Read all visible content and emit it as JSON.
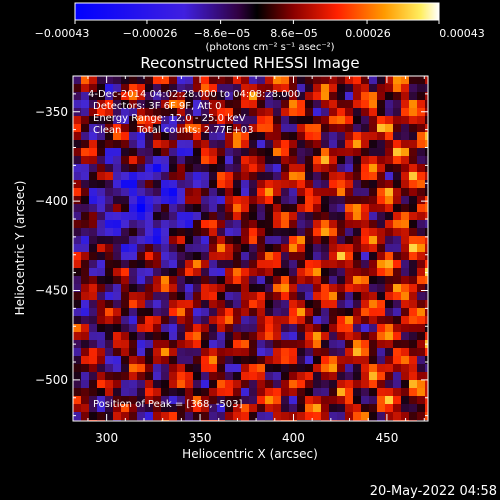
{
  "chart_data": {
    "type": "heatmap",
    "title": "Reconstructed RHESSI Image",
    "xlabel": "Heliocentric X (arcsec)",
    "ylabel": "Heliocentric Y (arcsec)",
    "xlim": [
      282,
      472
    ],
    "ylim": [
      -523,
      -330
    ],
    "x_ticks": [
      300,
      350,
      400,
      450
    ],
    "y_ticks": [
      -500,
      -450,
      -400,
      -350
    ],
    "x_tick_labels": [
      "300",
      "350",
      "400",
      "450"
    ],
    "y_tick_labels": [
      "−500",
      "−450",
      "−400",
      "−350"
    ],
    "colorbar": {
      "range": [
        -0.00043,
        0.00043
      ],
      "ticks": [
        -0.00043,
        -0.00026,
        -8.6e-05,
        8.6e-05,
        0.00026,
        0.00043
      ],
      "tick_labels": [
        "−0.00043",
        "−0.00026",
        "−8.6e−05",
        "8.6e−05",
        "0.00026",
        "0.00043"
      ],
      "unit_label": "(photons cm⁻² s⁻¹ asec⁻²)"
    },
    "annotations": [
      "4-Dec-2014 04:02:28.000 to 04:08:28.000",
      "Detectors: 3F 6F 9F, Att 0",
      "Energy Range: 12.0 - 25.0 keV",
      "Clean     Total counts: 2.77E+03",
      "Position of Peak = [368, -503]"
    ],
    "peak": [
      368,
      -503
    ],
    "grid": false
  },
  "footer_date": "20-May-2022 04:58"
}
